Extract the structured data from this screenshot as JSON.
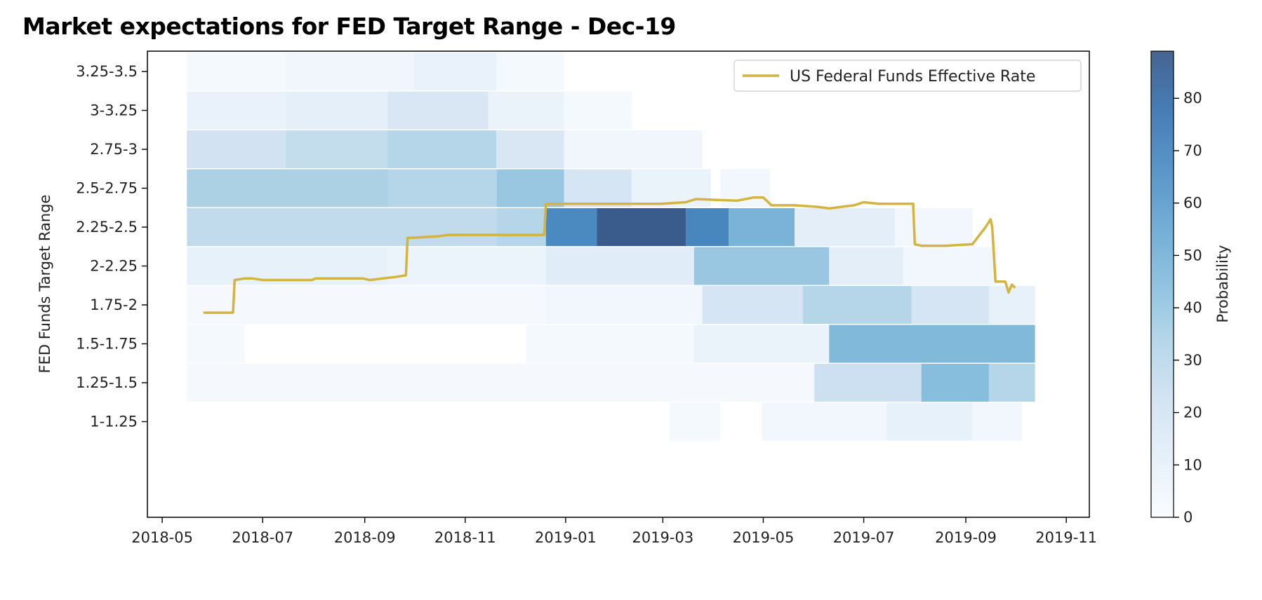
{
  "chart_data": {
    "type": "heatmap",
    "title": "Market expectations for FED Target Range - Dec-19",
    "ylabel": "FED Funds Target Range",
    "xlabel": "",
    "x_ticks": [
      "2018-05",
      "2018-07",
      "2018-09",
      "2018-11",
      "2019-01",
      "2019-03",
      "2019-05",
      "2019-07",
      "2019-09",
      "2019-11"
    ],
    "xlim": [
      "2018-04-22",
      "2019-11-15"
    ],
    "y_categories": [
      "3.25-3.5",
      "3-3.25",
      "2.75-3",
      "2.5-2.75",
      "2.25-2.5",
      "2-2.25",
      "1.75-2",
      "1.5-1.75",
      "1.25-1.5",
      "1-1.25"
    ],
    "colorbar": {
      "label": "Probability",
      "min": 0,
      "max": 89,
      "ticks": [
        0,
        10,
        20,
        30,
        40,
        50,
        60,
        70,
        80
      ],
      "colormap": "Blues"
    },
    "legend": {
      "position": "top-right",
      "entries": [
        {
          "label": "US Federal Funds Effective Rate",
          "color": "#d4b33e"
        }
      ]
    },
    "heatmap_rows": [
      {
        "range": "3.25-3.5",
        "segments": [
          [
            "2018-05-16",
            "2018-07-15",
            3
          ],
          [
            "2018-07-15",
            "2018-10-01",
            5
          ],
          [
            "2018-10-01",
            "2018-11-20",
            9
          ],
          [
            "2018-11-20",
            "2018-12-31",
            3
          ]
        ]
      },
      {
        "range": "3-3.25",
        "segments": [
          [
            "2018-05-16",
            "2018-07-15",
            9
          ],
          [
            "2018-07-15",
            "2018-09-15",
            11
          ],
          [
            "2018-09-15",
            "2018-11-15",
            18
          ],
          [
            "2018-11-15",
            "2018-12-31",
            8
          ],
          [
            "2018-12-31",
            "2019-02-10",
            3
          ]
        ]
      },
      {
        "range": "2.75-3",
        "segments": [
          [
            "2018-05-16",
            "2018-07-15",
            22
          ],
          [
            "2018-07-15",
            "2018-09-15",
            27
          ],
          [
            "2018-09-15",
            "2018-11-20",
            32
          ],
          [
            "2018-11-20",
            "2018-12-31",
            18
          ],
          [
            "2018-12-31",
            "2019-03-25",
            5
          ]
        ]
      },
      {
        "range": "2.5-2.75",
        "segments": [
          [
            "2018-05-16",
            "2018-09-15",
            35
          ],
          [
            "2018-09-15",
            "2018-11-20",
            32
          ],
          [
            "2018-11-20",
            "2018-12-31",
            40
          ],
          [
            "2018-12-31",
            "2019-02-10",
            20
          ],
          [
            "2019-02-10",
            "2019-03-30",
            8
          ],
          [
            "2019-04-05",
            "2019-05-05",
            4
          ]
        ]
      },
      {
        "range": "2.25-2.5",
        "segments": [
          [
            "2018-05-16",
            "2018-11-20",
            28
          ],
          [
            "2018-11-20",
            "2018-12-20",
            32
          ],
          [
            "2018-12-20",
            "2019-01-20",
            68
          ],
          [
            "2019-01-20",
            "2019-03-15",
            88
          ],
          [
            "2019-03-15",
            "2019-04-10",
            70
          ],
          [
            "2019-04-10",
            "2019-05-20",
            50
          ],
          [
            "2019-05-20",
            "2019-07-20",
            12
          ],
          [
            "2019-07-20",
            "2019-09-05",
            4
          ]
        ]
      },
      {
        "range": "2-2.25",
        "segments": [
          [
            "2018-05-16",
            "2018-09-15",
            10
          ],
          [
            "2018-09-15",
            "2018-12-20",
            7
          ],
          [
            "2018-12-20",
            "2019-03-20",
            14
          ],
          [
            "2019-03-20",
            "2019-06-10",
            40
          ],
          [
            "2019-06-10",
            "2019-07-25",
            12
          ],
          [
            "2019-07-25",
            "2019-09-20",
            4
          ]
        ]
      },
      {
        "range": "1.75-2",
        "segments": [
          [
            "2018-05-16",
            "2018-12-20",
            2
          ],
          [
            "2018-12-20",
            "2019-03-25",
            4
          ],
          [
            "2019-03-25",
            "2019-05-25",
            20
          ],
          [
            "2019-05-25",
            "2019-07-30",
            32
          ],
          [
            "2019-07-30",
            "2019-09-15",
            20
          ],
          [
            "2019-09-15",
            "2019-10-13",
            10
          ]
        ]
      },
      {
        "range": "1.5-1.75",
        "segments": [
          [
            "2018-05-16",
            "2018-06-20",
            3
          ],
          [
            "2018-12-08",
            "2019-03-20",
            3
          ],
          [
            "2019-03-20",
            "2019-06-10",
            8
          ],
          [
            "2019-06-10",
            "2019-10-13",
            47
          ]
        ]
      },
      {
        "range": "1.25-1.5",
        "segments": [
          [
            "2018-05-16",
            "2019-06-01",
            2
          ],
          [
            "2019-06-01",
            "2019-08-05",
            24
          ],
          [
            "2019-08-05",
            "2019-09-15",
            45
          ],
          [
            "2019-09-15",
            "2019-10-13",
            32
          ]
        ]
      },
      {
        "range": "1-1.25",
        "segments": [
          [
            "2019-03-05",
            "2019-04-05",
            3
          ],
          [
            "2019-04-30",
            "2019-07-15",
            4
          ],
          [
            "2019-07-15",
            "2019-09-05",
            10
          ],
          [
            "2019-09-05",
            "2019-10-05",
            4
          ]
        ]
      }
    ],
    "series": [
      {
        "name": "US Federal Funds Effective Rate",
        "color": "#d4b33e",
        "points": [
          [
            "2018-05-26",
            1.7
          ],
          [
            "2018-06-13",
            1.7
          ],
          [
            "2018-06-14",
            1.91
          ],
          [
            "2018-06-20",
            1.92
          ],
          [
            "2018-06-25",
            1.92
          ],
          [
            "2018-07-01",
            1.91
          ],
          [
            "2018-07-31",
            1.91
          ],
          [
            "2018-08-02",
            1.92
          ],
          [
            "2018-08-31",
            1.92
          ],
          [
            "2018-09-04",
            1.91
          ],
          [
            "2018-09-20",
            1.93
          ],
          [
            "2018-09-26",
            1.94
          ],
          [
            "2018-09-27",
            2.18
          ],
          [
            "2018-10-15",
            2.19
          ],
          [
            "2018-10-22",
            2.2
          ],
          [
            "2018-11-01",
            2.2
          ],
          [
            "2018-11-30",
            2.2
          ],
          [
            "2018-12-05",
            2.2
          ],
          [
            "2018-12-19",
            2.2
          ],
          [
            "2018-12-20",
            2.4
          ],
          [
            "2019-02-28",
            2.4
          ],
          [
            "2019-03-15",
            2.41
          ],
          [
            "2019-03-21",
            2.43
          ],
          [
            "2019-04-15",
            2.42
          ],
          [
            "2019-04-25",
            2.44
          ],
          [
            "2019-05-01",
            2.44
          ],
          [
            "2019-05-06",
            2.39
          ],
          [
            "2019-05-20",
            2.39
          ],
          [
            "2019-06-03",
            2.38
          ],
          [
            "2019-06-10",
            2.37
          ],
          [
            "2019-06-25",
            2.39
          ],
          [
            "2019-07-01",
            2.41
          ],
          [
            "2019-07-10",
            2.4
          ],
          [
            "2019-07-20",
            2.4
          ],
          [
            "2019-07-31",
            2.4
          ],
          [
            "2019-08-01",
            2.14
          ],
          [
            "2019-08-05",
            2.13
          ],
          [
            "2019-08-20",
            2.13
          ],
          [
            "2019-09-05",
            2.14
          ],
          [
            "2019-09-13",
            2.25
          ],
          [
            "2019-09-16",
            2.3
          ],
          [
            "2019-09-17",
            2.25
          ],
          [
            "2019-09-19",
            1.9
          ],
          [
            "2019-09-25",
            1.9
          ],
          [
            "2019-09-27",
            1.83
          ],
          [
            "2019-09-29",
            1.88
          ],
          [
            "2019-10-01",
            1.86
          ]
        ]
      }
    ]
  }
}
